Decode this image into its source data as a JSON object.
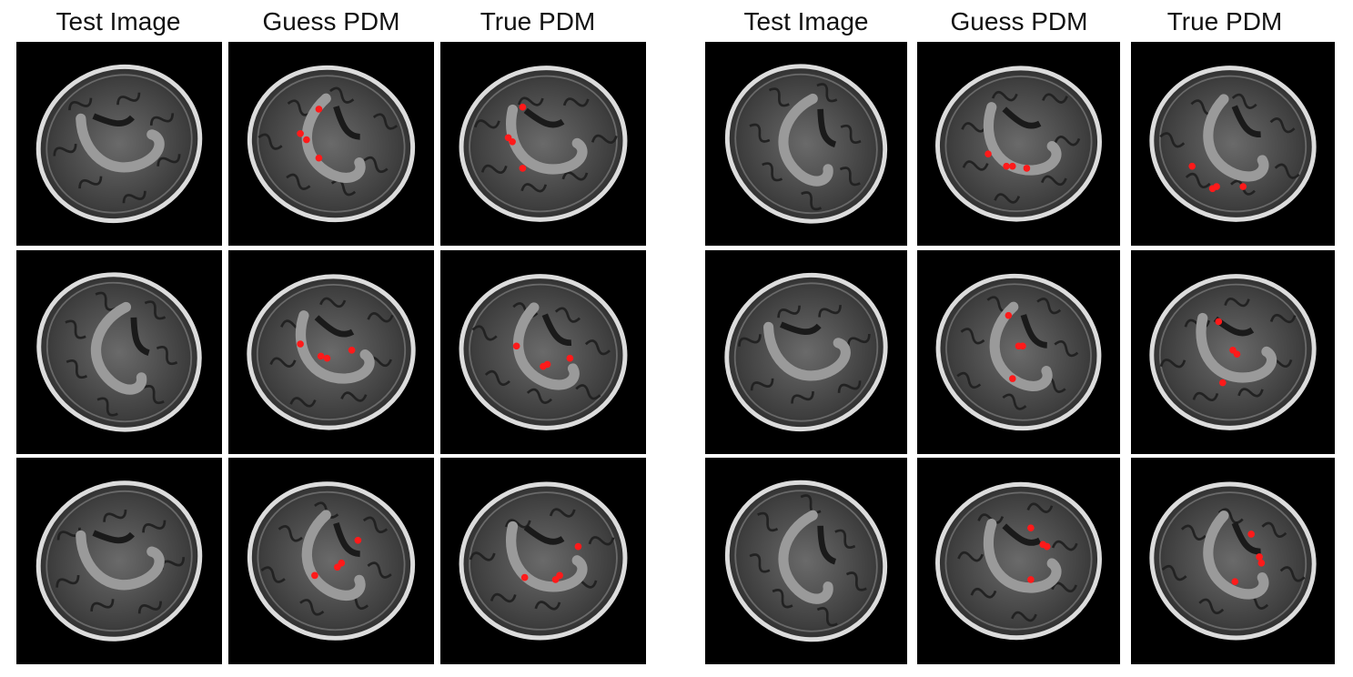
{
  "panels": [
    {
      "headers": [
        "Test Image",
        "Guess PDM",
        "True PDM"
      ],
      "rows": [
        {
          "points_guess": [
            [
              0.44,
              0.33
            ],
            [
              0.35,
              0.45
            ],
            [
              0.38,
              0.48
            ],
            [
              0.44,
              0.57
            ]
          ],
          "points_true": [
            [
              0.4,
              0.32
            ],
            [
              0.33,
              0.47
            ],
            [
              0.35,
              0.49
            ],
            [
              0.4,
              0.62
            ]
          ]
        },
        {
          "points_guess": [
            [
              0.35,
              0.46
            ],
            [
              0.45,
              0.52
            ],
            [
              0.48,
              0.53
            ],
            [
              0.6,
              0.49
            ]
          ],
          "points_true": [
            [
              0.37,
              0.47
            ],
            [
              0.5,
              0.57
            ],
            [
              0.52,
              0.56
            ],
            [
              0.63,
              0.53
            ]
          ]
        },
        {
          "points_guess": [
            [
              0.63,
              0.4
            ],
            [
              0.53,
              0.53
            ],
            [
              0.55,
              0.51
            ],
            [
              0.42,
              0.57
            ]
          ],
          "points_true": [
            [
              0.67,
              0.43
            ],
            [
              0.58,
              0.57
            ],
            [
              0.56,
              0.59
            ],
            [
              0.41,
              0.58
            ]
          ]
        }
      ]
    },
    {
      "headers": [
        "Test Image",
        "Guess PDM",
        "True PDM"
      ],
      "rows": [
        {
          "points_guess": [
            [
              0.35,
              0.55
            ],
            [
              0.44,
              0.61
            ],
            [
              0.47,
              0.61
            ],
            [
              0.54,
              0.62
            ]
          ],
          "points_true": [
            [
              0.3,
              0.61
            ],
            [
              0.4,
              0.72
            ],
            [
              0.42,
              0.71
            ],
            [
              0.55,
              0.71
            ]
          ]
        },
        {
          "points_guess": [
            [
              0.45,
              0.32
            ],
            [
              0.5,
              0.47
            ],
            [
              0.52,
              0.47
            ],
            [
              0.47,
              0.63
            ]
          ],
          "points_true": [
            [
              0.43,
              0.35
            ],
            [
              0.5,
              0.49
            ],
            [
              0.52,
              0.51
            ],
            [
              0.45,
              0.65
            ]
          ]
        },
        {
          "points_guess": [
            [
              0.56,
              0.34
            ],
            [
              0.62,
              0.42
            ],
            [
              0.64,
              0.43
            ],
            [
              0.56,
              0.59
            ]
          ],
          "points_true": [
            [
              0.59,
              0.37
            ],
            [
              0.63,
              0.48
            ],
            [
              0.64,
              0.51
            ],
            [
              0.51,
              0.6
            ]
          ]
        }
      ]
    }
  ],
  "colors": {
    "marker": "#ff1a1a",
    "tile_bg": "#000000"
  }
}
